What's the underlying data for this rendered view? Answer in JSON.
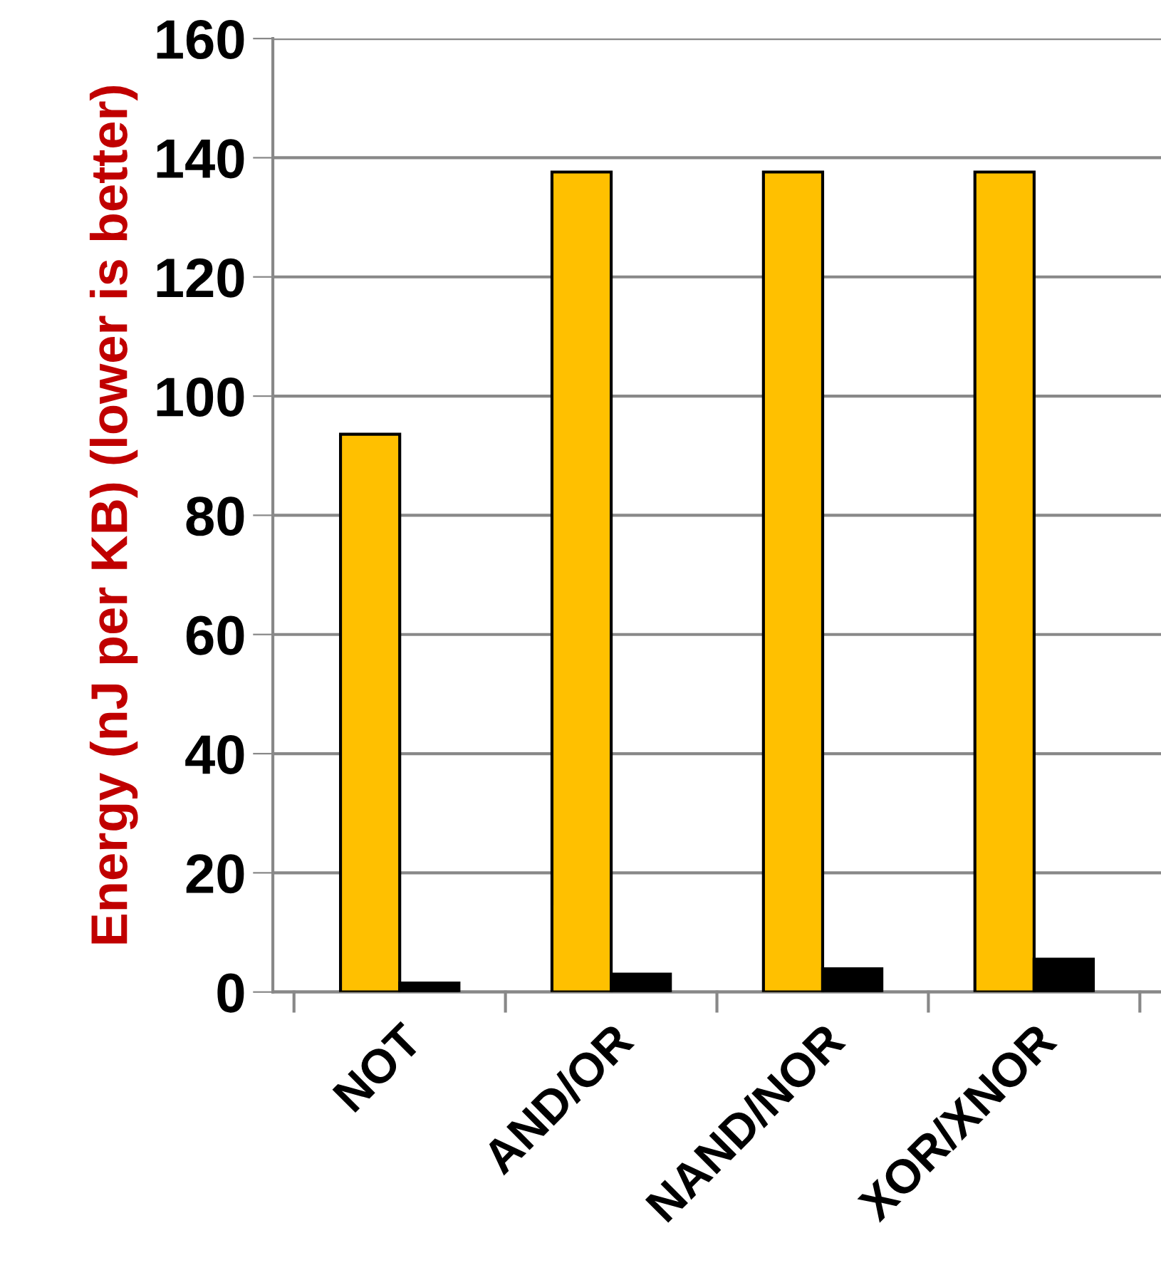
{
  "chart_data": {
    "type": "bar",
    "ylabel": "Energy (nJ per KB) (lower is better)",
    "categories": [
      "NOT",
      "AND/OR",
      "NAND/NOR",
      "XOR/XNOR"
    ],
    "series": [
      {
        "color": "#ffc000",
        "values": [
          93.6,
          137.6,
          137.6,
          137.6
        ]
      },
      {
        "color": "#000000",
        "values": [
          1.5,
          3.0,
          3.9,
          5.5
        ]
      }
    ],
    "ylim": [
      0,
      160
    ],
    "yticks": [
      0,
      20,
      40,
      60,
      80,
      100,
      120,
      140,
      160
    ],
    "grid": "y",
    "legend": false
  }
}
